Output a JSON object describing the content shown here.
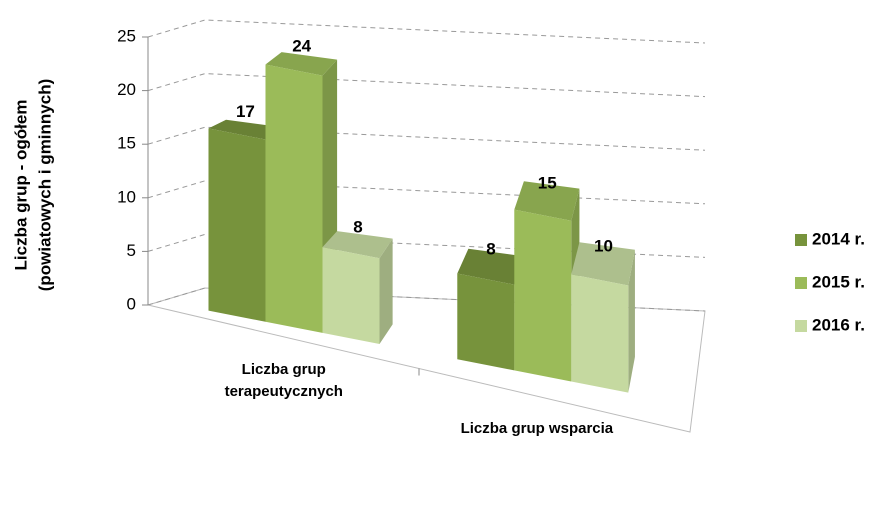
{
  "chart_data": {
    "type": "bar3d",
    "ylabel": [
      "Liczba grup - ogółem",
      "(powiatowych i gminnych)"
    ],
    "categories": [
      "Liczba grup terapeutycznych",
      "Liczba grup wsparcia"
    ],
    "series": [
      {
        "name": "2014 r.",
        "color": "#77933c",
        "values": [
          17,
          8
        ]
      },
      {
        "name": "2015 r.",
        "color": "#9bbb59",
        "values": [
          24,
          15
        ]
      },
      {
        "name": "2016 r.",
        "color": "#c5d9a0",
        "values": [
          8,
          10
        ]
      }
    ],
    "ylim": [
      0,
      25
    ],
    "yticks": [
      0,
      5,
      10,
      15,
      20,
      25
    ],
    "grid": true,
    "legend": "right"
  }
}
